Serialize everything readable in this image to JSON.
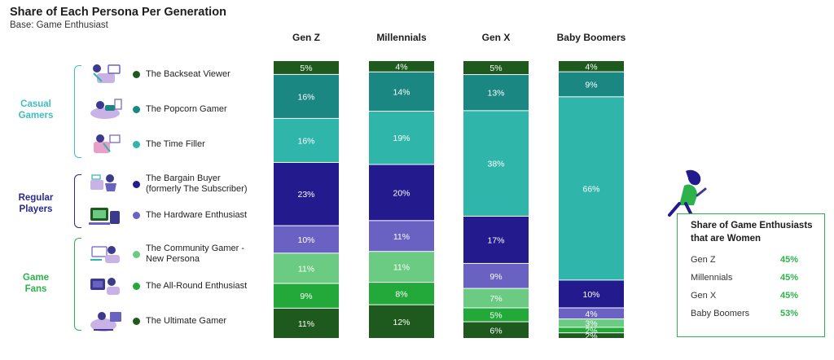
{
  "title": "Share of Each Persona Per Generation",
  "subtitle": "Base: Game Enthusiast",
  "groups": [
    {
      "label": "Casual Gamers",
      "color": "#3fbfc0"
    },
    {
      "label": "Regular Players",
      "color": "#2a2a8e"
    },
    {
      "label": "Game Fans",
      "color": "#2db34a"
    }
  ],
  "personas": [
    {
      "name": "The Backseat Viewer",
      "color": "#1e5a1e",
      "icon": "backseat-viewer-illustration"
    },
    {
      "name": "The Popcorn Gamer",
      "color": "#1a8782",
      "icon": "popcorn-gamer-illustration"
    },
    {
      "name": "The Time Filler",
      "color": "#2fb5aa",
      "icon": "time-filler-illustration"
    },
    {
      "name": "The Bargain Buyer\n(formerly The Subscriber)",
      "color": "#231a8e",
      "icon": "bargain-buyer-illustration"
    },
    {
      "name": "The Hardware Enthusiast",
      "color": "#6a62c2",
      "icon": "hardware-enthusiast-illustration"
    },
    {
      "name": "The Community Gamer -\nNew Persona",
      "color": "#6ccb82",
      "icon": "community-gamer-illustration"
    },
    {
      "name": "The All-Round Enthusiast",
      "color": "#23a83a",
      "icon": "all-round-enthusiast-illustration"
    },
    {
      "name": "The Ultimate Gamer",
      "color": "#1e5a1e",
      "icon": "ultimate-gamer-illustration"
    }
  ],
  "chart_data": {
    "type": "bar",
    "stacked": true,
    "orientation": "vertical",
    "percent_stacked": true,
    "title": "Share of Each Persona Per Generation",
    "subtitle": "Base: Game Enthusiast",
    "categories": [
      "Gen Z",
      "Millennials",
      "Gen X",
      "Baby Boomers"
    ],
    "series": [
      {
        "name": "The Backseat Viewer",
        "color": "#1e5a1e",
        "values": [
          5,
          4,
          5,
          4
        ],
        "labels": [
          "5%",
          "4%",
          "5%",
          "4%"
        ]
      },
      {
        "name": "The Popcorn Gamer",
        "color": "#1a8782",
        "values": [
          16,
          14,
          13,
          9
        ],
        "labels": [
          "16%",
          "14%",
          "13%",
          "9%"
        ]
      },
      {
        "name": "The Time Filler",
        "color": "#2fb5aa",
        "values": [
          16,
          19,
          38,
          66
        ],
        "labels": [
          "16%",
          "19%",
          "38%",
          "66%"
        ]
      },
      {
        "name": "The Bargain Buyer (formerly The Subscriber)",
        "color": "#231a8e",
        "values": [
          23,
          20,
          17,
          10
        ],
        "labels": [
          "23%",
          "20%",
          "17%",
          "10%"
        ]
      },
      {
        "name": "The Hardware Enthusiast",
        "color": "#6a62c2",
        "values": [
          10,
          11,
          9,
          4
        ],
        "labels": [
          "10%",
          "11%",
          "9%",
          "4%"
        ]
      },
      {
        "name": "The Community Gamer - New Persona",
        "color": "#6ccb82",
        "values": [
          11,
          11,
          7,
          3
        ],
        "labels": [
          "11%",
          "11%",
          "7%",
          "3%"
        ]
      },
      {
        "name": "The All-Round Enthusiast",
        "color": "#23a83a",
        "values": [
          9,
          8,
          5,
          2
        ],
        "labels": [
          "9%",
          "8%",
          "5%",
          "2%"
        ]
      },
      {
        "name": "The Ultimate Gamer",
        "color": "#1e5a1e",
        "values": [
          11,
          12,
          6,
          2
        ],
        "labels": [
          "11%",
          "12%",
          "6%",
          "2%"
        ]
      }
    ]
  },
  "women_share": {
    "title": "Share of Game Enthusiasts that are Women",
    "rows": [
      {
        "label": "Gen Z",
        "value": "45%"
      },
      {
        "label": "Millennials",
        "value": "45%"
      },
      {
        "label": "Gen X",
        "value": "45%"
      },
      {
        "label": "Baby Boomers",
        "value": "53%"
      }
    ],
    "accent": "#2db34a"
  }
}
